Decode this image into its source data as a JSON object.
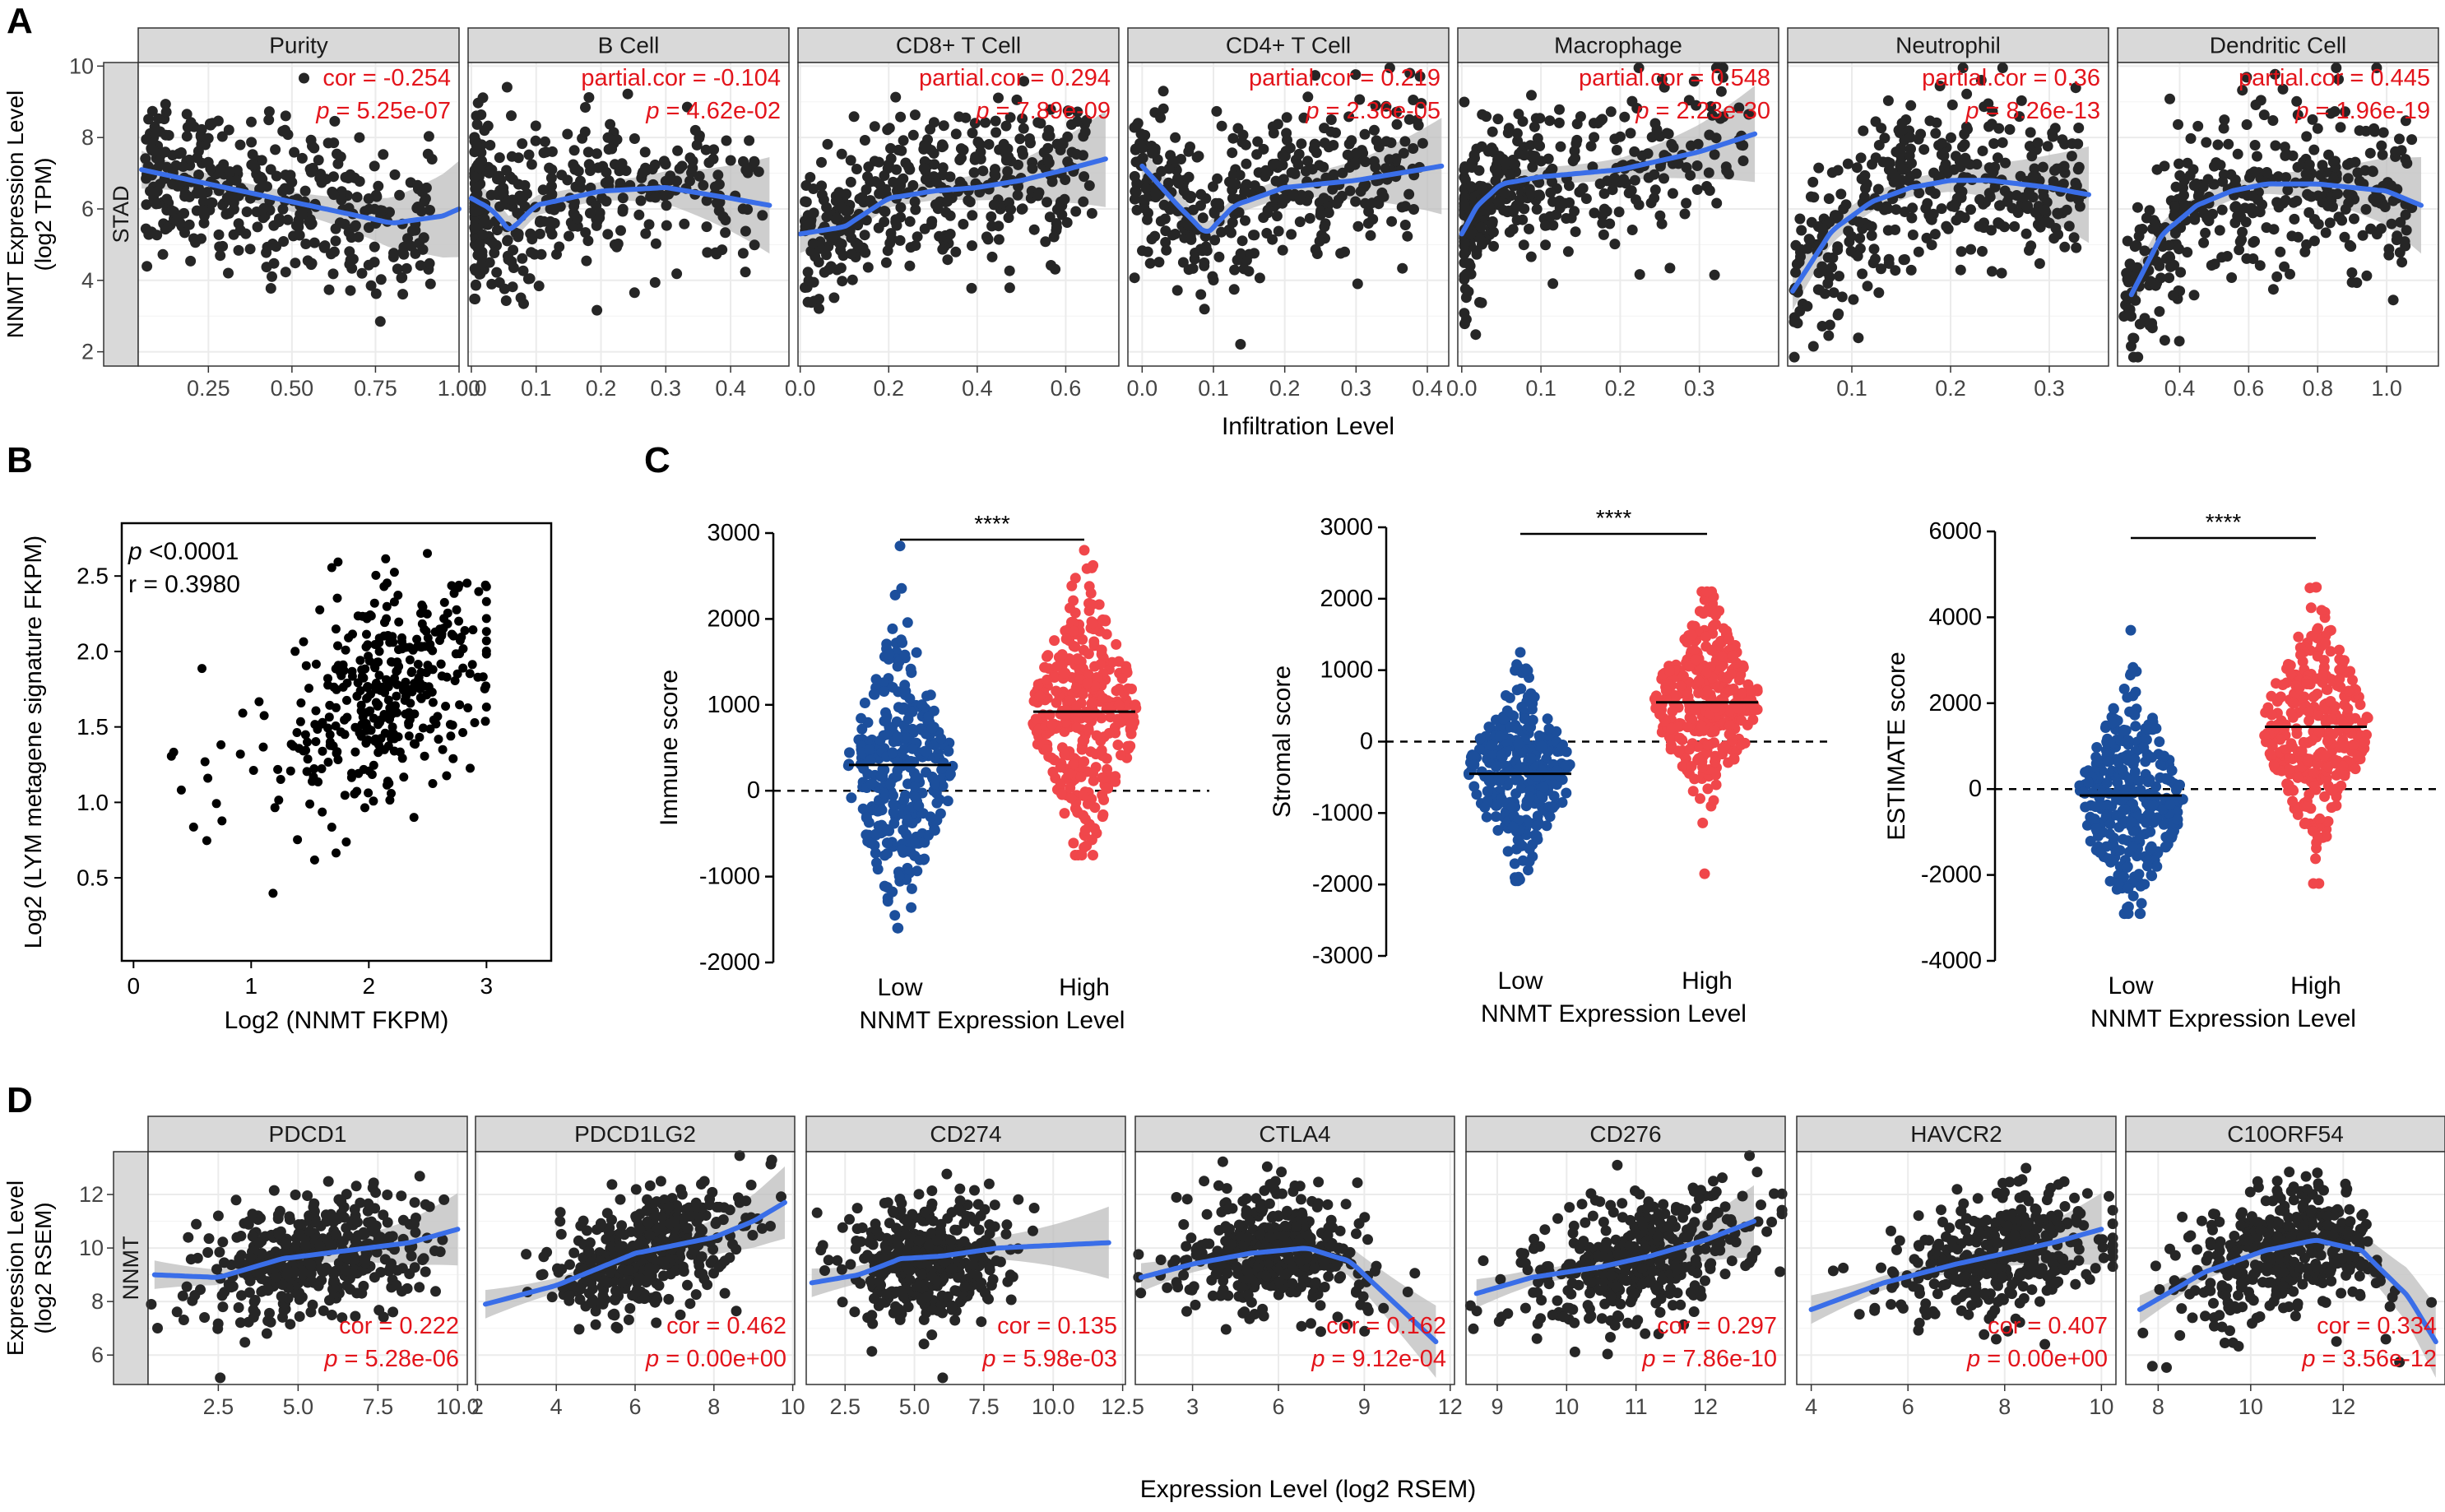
{
  "panel_labels": [
    "A",
    "B",
    "C",
    "D"
  ],
  "colors": {
    "points": "#262626",
    "fit": "#3a6ee8",
    "band": "#bdbdbd",
    "stat": "#e3141b",
    "strip_bg": "#d9d9d9",
    "low": "#1c4f9c",
    "high": "#f0474b"
  },
  "chart_data": [
    {
      "id": "A",
      "type": "scatter",
      "facet_label": "STAD",
      "ylabel_lines": [
        "NNMT Expression Level",
        "(log2 TPM)"
      ],
      "xlabel": "Infiltration Level",
      "ylim": [
        1.6,
        10.1
      ],
      "yticks": [
        2,
        4,
        6,
        8,
        10
      ],
      "panels": [
        {
          "title": "Purity",
          "stat_label": "cor",
          "cor": "-0.254",
          "p": "5.25e-07",
          "xlim": [
            0.04,
            1.0
          ],
          "xticks": [
            "0.25",
            "0.50",
            "0.75",
            "1.00"
          ],
          "xtick_values": [
            0.25,
            0.5,
            0.75,
            1.0
          ],
          "n": 380,
          "ymean": 6.0,
          "ysd": 1.15,
          "fit_x": [
            0.05,
            0.2,
            0.35,
            0.5,
            0.65,
            0.8,
            0.95,
            1.0
          ],
          "fit_y": [
            7.1,
            6.8,
            6.5,
            6.2,
            5.9,
            5.6,
            5.8,
            6.0
          ]
        },
        {
          "title": "B Cell",
          "stat_label": "partial.cor",
          "cor": "-0.104",
          "p": "4.62e-02",
          "xlim": [
            -0.005,
            0.49
          ],
          "xticks": [
            "0.0",
            "0.1",
            "0.2",
            "0.3",
            "0.4"
          ],
          "xtick_values": [
            0.0,
            0.1,
            0.2,
            0.3,
            0.4
          ],
          "n": 380,
          "ymean": 6.0,
          "ysd": 1.2,
          "fit_x": [
            0.0,
            0.03,
            0.06,
            0.1,
            0.2,
            0.3,
            0.4,
            0.46
          ],
          "fit_y": [
            6.3,
            6.0,
            5.4,
            6.1,
            6.5,
            6.6,
            6.3,
            6.1
          ]
        },
        {
          "title": "CD8+ T Cell",
          "stat_label": "partial.cor",
          "cor": "0.294",
          "p": "7.89e-09",
          "xlim": [
            -0.005,
            0.72
          ],
          "xticks": [
            "0.0",
            "0.2",
            "0.4",
            "0.6"
          ],
          "xtick_values": [
            0.0,
            0.2,
            0.4,
            0.6
          ],
          "n": 380,
          "ymean": 6.1,
          "ysd": 1.15,
          "fit_x": [
            0.0,
            0.1,
            0.2,
            0.3,
            0.4,
            0.5,
            0.6,
            0.69
          ],
          "fit_y": [
            5.3,
            5.5,
            6.3,
            6.5,
            6.6,
            6.8,
            7.1,
            7.4
          ]
        },
        {
          "title": "CD4+ T Cell",
          "stat_label": "partial.cor",
          "cor": "0.219",
          "p": "2.36e-05",
          "xlim": [
            -0.02,
            0.43
          ],
          "xticks": [
            "0.0",
            "0.1",
            "0.2",
            "0.3",
            "0.4"
          ],
          "xtick_values": [
            0.0,
            0.1,
            0.2,
            0.3,
            0.4
          ],
          "n": 380,
          "ymean": 6.0,
          "ysd": 1.2,
          "fit_x": [
            0.0,
            0.05,
            0.09,
            0.13,
            0.2,
            0.3,
            0.42
          ],
          "fit_y": [
            7.2,
            6.1,
            5.3,
            6.1,
            6.6,
            6.8,
            7.2
          ]
        },
        {
          "title": "Macrophage",
          "stat_label": "partial.cor",
          "cor": "0.548",
          "p": "2.23e-30",
          "xlim": [
            -0.005,
            0.4
          ],
          "xticks": [
            "0.0",
            "0.1",
            "0.2",
            "0.3"
          ],
          "xtick_values": [
            0.0,
            0.1,
            0.2,
            0.3
          ],
          "n": 380,
          "ymean": 6.3,
          "ysd": 1.1,
          "fit_x": [
            0.0,
            0.02,
            0.05,
            0.1,
            0.15,
            0.2,
            0.3,
            0.37
          ],
          "fit_y": [
            5.3,
            6.1,
            6.7,
            6.9,
            7.0,
            7.1,
            7.6,
            8.1
          ]
        },
        {
          "title": "Neutrophil",
          "stat_label": "partial.cor",
          "cor": "0.36",
          "p": "8.26e-13",
          "xlim": [
            0.035,
            0.36
          ],
          "xticks": [
            "0.1",
            "0.2",
            "0.3"
          ],
          "xtick_values": [
            0.1,
            0.2,
            0.3
          ],
          "n": 380,
          "ymean": 6.3,
          "ysd": 1.2,
          "fit_x": [
            0.04,
            0.08,
            0.12,
            0.16,
            0.2,
            0.24,
            0.3,
            0.34
          ],
          "fit_y": [
            3.7,
            5.4,
            6.2,
            6.6,
            6.8,
            6.8,
            6.6,
            6.4
          ]
        },
        {
          "title": "Dendritic Cell",
          "stat_label": "partial.cor",
          "cor": "0.445",
          "p": "1.96e-19",
          "xlim": [
            0.22,
            1.15
          ],
          "xticks": [
            "0.4",
            "0.6",
            "0.8",
            "1.0"
          ],
          "xtick_values": [
            0.4,
            0.6,
            0.8,
            1.0
          ],
          "n": 380,
          "ymean": 6.2,
          "ysd": 1.2,
          "fit_x": [
            0.26,
            0.35,
            0.45,
            0.55,
            0.65,
            0.8,
            1.0,
            1.1
          ],
          "fit_y": [
            3.6,
            5.3,
            6.1,
            6.5,
            6.7,
            6.7,
            6.5,
            6.1
          ]
        }
      ]
    },
    {
      "id": "B",
      "type": "scatter",
      "xlabel": "Log2 (NNMT FKPM)",
      "ylabel": "Log2 (LYM metagene signature FKPM)",
      "xlim": [
        -0.1,
        3.55
      ],
      "ylim": [
        -0.05,
        2.85
      ],
      "xticks": [
        0,
        1,
        2,
        3
      ],
      "yticks": [
        "0.5",
        "1.0",
        "1.5",
        "2.0",
        "2.5"
      ],
      "ytick_values": [
        0.5,
        1.0,
        1.5,
        2.0,
        2.5
      ],
      "p_text": "<0.0001",
      "r_text": "r = 0.3980",
      "n": 380,
      "xmean": 2.2,
      "xsd": 0.45,
      "ymean": 1.75,
      "ysd": 0.42
    },
    {
      "id": "C",
      "type": "strip",
      "categories": [
        "Low",
        "High"
      ],
      "xlabel": "NNMT Expression Level",
      "significance": "****",
      "panels": [
        {
          "ylabel": "Immune score",
          "ylim": [
            -2000,
            3000
          ],
          "yticks": [
            -2000,
            -1000,
            0,
            1000,
            2000,
            3000
          ],
          "median_low": 300,
          "median_high": 920,
          "low": {
            "min": -1600,
            "max": 2850,
            "mean": 250,
            "sd": 720
          },
          "high": {
            "min": -750,
            "max": 2800,
            "mean": 900,
            "sd": 680
          }
        },
        {
          "ylabel": "Stromal score",
          "ylim": [
            -3000,
            3000
          ],
          "yticks": [
            -3000,
            -2000,
            -1000,
            0,
            1000,
            2000,
            3000
          ],
          "median_low": -450,
          "median_high": 550,
          "low": {
            "min": -1950,
            "max": 1250,
            "mean": -450,
            "sd": 560
          },
          "high": {
            "min": -1850,
            "max": 2100,
            "mean": 520,
            "sd": 620
          }
        },
        {
          "ylabel": "ESTIMATE score",
          "ylim": [
            -4000,
            6000
          ],
          "yticks": [
            -4000,
            -2000,
            0,
            2000,
            4000,
            6000
          ],
          "median_low": -150,
          "median_high": 1450,
          "low": {
            "min": -2900,
            "max": 3700,
            "mean": -200,
            "sd": 1150
          },
          "high": {
            "min": -2200,
            "max": 4700,
            "mean": 1450,
            "sd": 1150
          }
        }
      ]
    },
    {
      "id": "D",
      "type": "scatter",
      "facet_label": "NNMT",
      "ylabel_lines": [
        "Expression Level",
        "(log2 RSEM)"
      ],
      "xlabel": "Expression Level (log2 RSEM)",
      "ylim": [
        4.9,
        13.6
      ],
      "yticks": [
        6,
        8,
        10,
        12
      ],
      "panels": [
        {
          "title": "PDCD1",
          "stat_label": "cor",
          "cor": "0.222",
          "p": "5.28e-06",
          "xlim": [
            0.3,
            10.3
          ],
          "xticks": [
            "2.5",
            "5.0",
            "7.5",
            "10.0"
          ],
          "xtick_values": [
            2.5,
            5.0,
            7.5,
            10.0
          ],
          "n": 400,
          "xmean": 5.6,
          "xsd": 1.7,
          "ymean": 9.7,
          "ysd": 1.2,
          "fit_x": [
            0.5,
            2.5,
            4.5,
            6.5,
            8.5,
            10.0
          ],
          "fit_y": [
            9.0,
            8.9,
            9.6,
            9.9,
            10.2,
            10.7
          ]
        },
        {
          "title": "PDCD1LG2",
          "stat_label": "cor",
          "cor": "0.462",
          "p": "0.00e+00",
          "xlim": [
            1.95,
            10.05
          ],
          "xticks": [
            "2",
            "4",
            "6",
            "8",
            "10"
          ],
          "xtick_values": [
            2,
            4,
            6,
            8,
            10
          ],
          "n": 400,
          "xmean": 6.3,
          "xsd": 1.3,
          "ymean": 9.7,
          "ysd": 1.2,
          "fit_x": [
            2.2,
            4,
            6,
            7,
            8,
            9,
            9.8
          ],
          "fit_y": [
            7.9,
            8.6,
            9.8,
            10.1,
            10.4,
            11.0,
            11.7
          ]
        },
        {
          "title": "CD274",
          "stat_label": "cor",
          "cor": "0.135",
          "p": "5.98e-03",
          "xlim": [
            1.1,
            12.6
          ],
          "xticks": [
            "2.5",
            "5.0",
            "7.5",
            "10.0",
            "12.5"
          ],
          "xtick_values": [
            2.5,
            5.0,
            7.5,
            10.0,
            12.5
          ],
          "n": 400,
          "xmean": 5.5,
          "xsd": 1.4,
          "ymean": 9.7,
          "ysd": 1.2,
          "fit_x": [
            1.3,
            3,
            4.5,
            6,
            8,
            10,
            12
          ],
          "fit_y": [
            8.7,
            9.0,
            9.6,
            9.7,
            10.0,
            10.1,
            10.2
          ]
        },
        {
          "title": "CTLA4",
          "stat_label": "cor",
          "cor": "0.162",
          "p": "9.12e-04",
          "xlim": [
            1.0,
            12.15
          ],
          "xticks": [
            "3",
            "6",
            "9",
            "12"
          ],
          "xtick_values": [
            3,
            6,
            9,
            12
          ],
          "n": 400,
          "xmean": 5.8,
          "xsd": 1.6,
          "ymean": 9.7,
          "ysd": 1.2,
          "fit_x": [
            1.2,
            3,
            5,
            7,
            8.5,
            10,
            11.5
          ],
          "fit_y": [
            8.9,
            9.4,
            9.8,
            10.0,
            9.5,
            8.0,
            6.5
          ]
        },
        {
          "title": "CD276",
          "stat_label": "cor",
          "cor": "0.297",
          "p": "7.86e-10",
          "xlim": [
            8.55,
            13.15
          ],
          "xticks": [
            "9",
            "10",
            "11",
            "12"
          ],
          "xtick_values": [
            9,
            10,
            11,
            12
          ],
          "n": 400,
          "xmean": 11.0,
          "xsd": 0.85,
          "ymean": 9.7,
          "ysd": 1.2,
          "fit_x": [
            8.7,
            9.5,
            10.5,
            11.2,
            12,
            12.7
          ],
          "fit_y": [
            8.3,
            8.9,
            9.3,
            9.7,
            10.3,
            11.0
          ]
        },
        {
          "title": "HAVCR2",
          "stat_label": "cor",
          "cor": "0.407",
          "p": "0.00e+00",
          "xlim": [
            3.7,
            10.3
          ],
          "xticks": [
            "4",
            "6",
            "8",
            "10"
          ],
          "xtick_values": [
            4,
            6,
            8,
            10
          ],
          "n": 400,
          "xmean": 7.9,
          "xsd": 1.1,
          "ymean": 9.7,
          "ysd": 1.2,
          "fit_x": [
            4.0,
            5.5,
            7,
            8,
            9,
            10
          ],
          "fit_y": [
            7.7,
            8.7,
            9.4,
            9.8,
            10.2,
            10.7
          ]
        },
        {
          "title": "C10ORF54",
          "stat_label": "cor",
          "cor": "0.334",
          "p": "3.56e-12",
          "xlim": [
            7.3,
            14.2
          ],
          "xticks": [
            "8",
            "10",
            "12"
          ],
          "xtick_values": [
            8,
            10,
            12
          ],
          "n": 400,
          "xmean": 10.7,
          "xsd": 1.1,
          "ymean": 9.7,
          "ysd": 1.2,
          "fit_x": [
            7.6,
            9,
            10.3,
            11.4,
            12.4,
            13.4,
            14.0
          ],
          "fit_y": [
            7.7,
            9.1,
            9.9,
            10.3,
            9.9,
            8.2,
            6.5
          ]
        }
      ]
    }
  ]
}
